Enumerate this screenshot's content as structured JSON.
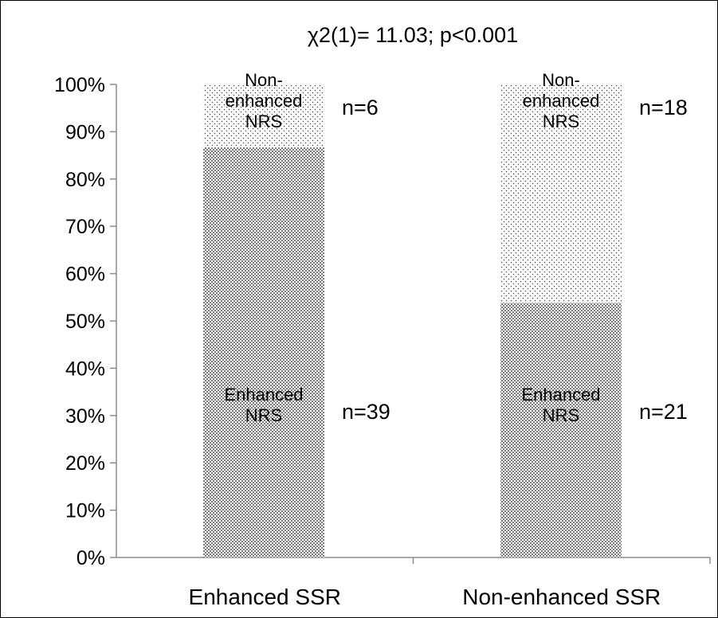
{
  "chart_data": {
    "type": "bar",
    "stacked": true,
    "percent_stacked": true,
    "title": "χ2(1)= 11.03; p<0.001",
    "categories": [
      "Enhanced SSR",
      "Non-enhanced SSR"
    ],
    "series": [
      {
        "key": "enhanced",
        "label_lines": [
          "Enhanced",
          "NRS"
        ],
        "counts": [
          39,
          21
        ],
        "count_labels": [
          "n=39",
          "n=21"
        ],
        "pattern": "dense-dots"
      },
      {
        "key": "nonenhanced",
        "label_lines": [
          "Non-",
          "enhanced",
          "NRS"
        ],
        "counts": [
          6,
          18
        ],
        "count_labels": [
          "n=6",
          "n=18"
        ],
        "pattern": "sparse-dots"
      }
    ],
    "ylim": [
      0,
      100
    ],
    "yticks": [
      0,
      10,
      20,
      30,
      40,
      50,
      60,
      70,
      80,
      90,
      100
    ],
    "ytick_labels": [
      "0%",
      "10%",
      "20%",
      "30%",
      "40%",
      "50%",
      "60%",
      "70%",
      "80%",
      "90%",
      "100%"
    ],
    "grid": false,
    "legend": "none"
  }
}
